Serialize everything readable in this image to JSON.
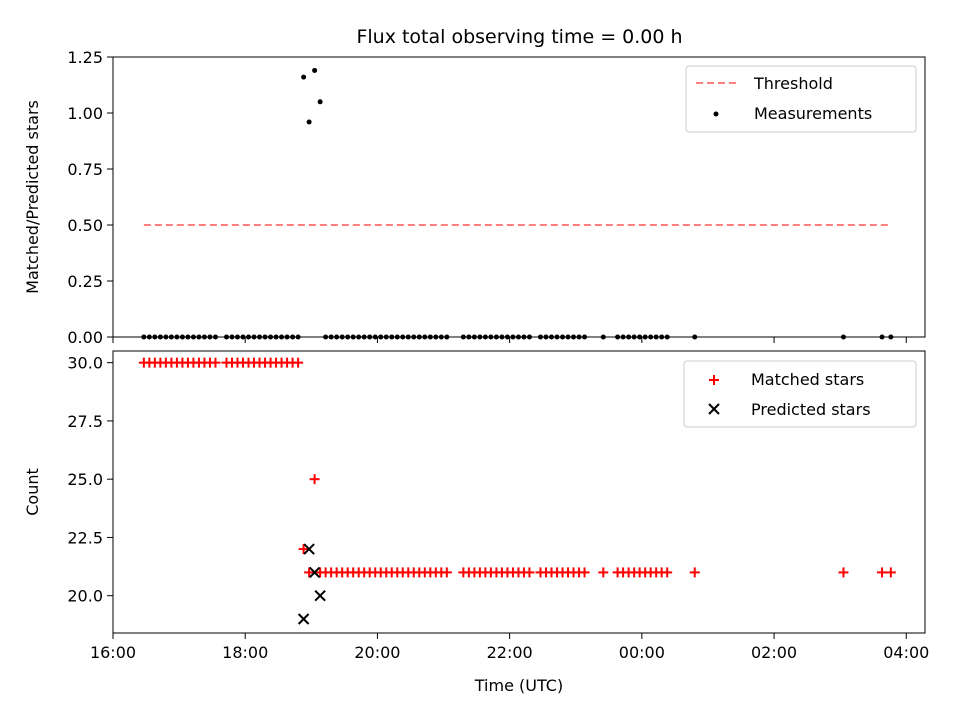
{
  "chart_data": [
    {
      "type": "scatter",
      "title": "Flux total observing time = 0.00 h",
      "ylabel": "Matched/Predicted stars",
      "xlabel": "",
      "xlim": [
        "16:00",
        "04:17"
      ],
      "ylim": [
        0,
        1.25
      ],
      "yticks": [
        "0.00",
        "0.25",
        "0.50",
        "0.75",
        "1.00",
        "1.25"
      ],
      "legend_position": "top-right",
      "series": [
        {
          "name": "Threshold",
          "style": "dashed-line",
          "color": "#ff7f7f",
          "points": [
            [
              "16:28",
              0.5
            ],
            [
              "03:46",
              0.5
            ]
          ]
        },
        {
          "name": "Measurements",
          "style": "dot",
          "color": "#000000",
          "points": [
            [
              "16:28",
              0
            ],
            [
              "16:33",
              0
            ],
            [
              "16:38",
              0
            ],
            [
              "16:43",
              0
            ],
            [
              "16:48",
              0
            ],
            [
              "16:53",
              0
            ],
            [
              "16:58",
              0
            ],
            [
              "17:03",
              0
            ],
            [
              "17:08",
              0
            ],
            [
              "17:13",
              0
            ],
            [
              "17:18",
              0
            ],
            [
              "17:23",
              0
            ],
            [
              "17:28",
              0
            ],
            [
              "17:33",
              0
            ],
            [
              "17:43",
              0
            ],
            [
              "17:48",
              0
            ],
            [
              "17:53",
              0
            ],
            [
              "17:58",
              0
            ],
            [
              "18:03",
              0
            ],
            [
              "18:08",
              0
            ],
            [
              "18:13",
              0
            ],
            [
              "18:18",
              0
            ],
            [
              "18:23",
              0
            ],
            [
              "18:28",
              0
            ],
            [
              "18:33",
              0
            ],
            [
              "18:38",
              0
            ],
            [
              "18:43",
              0
            ],
            [
              "18:48",
              0
            ],
            [
              "18:53",
              1.16
            ],
            [
              "18:58",
              0.96
            ],
            [
              "19:03",
              1.19
            ],
            [
              "19:08",
              1.05
            ],
            [
              "19:13",
              0
            ],
            [
              "19:18",
              0
            ],
            [
              "19:23",
              0
            ],
            [
              "19:28",
              0
            ],
            [
              "19:33",
              0
            ],
            [
              "19:38",
              0
            ],
            [
              "19:43",
              0
            ],
            [
              "19:48",
              0
            ],
            [
              "19:53",
              0
            ],
            [
              "19:58",
              0
            ],
            [
              "20:03",
              0
            ],
            [
              "20:08",
              0
            ],
            [
              "20:13",
              0
            ],
            [
              "20:18",
              0
            ],
            [
              "20:23",
              0
            ],
            [
              "20:28",
              0
            ],
            [
              "20:33",
              0
            ],
            [
              "20:38",
              0
            ],
            [
              "20:43",
              0
            ],
            [
              "20:48",
              0
            ],
            [
              "20:53",
              0
            ],
            [
              "20:58",
              0
            ],
            [
              "21:03",
              0
            ],
            [
              "21:18",
              0
            ],
            [
              "21:23",
              0
            ],
            [
              "21:28",
              0
            ],
            [
              "21:33",
              0
            ],
            [
              "21:38",
              0
            ],
            [
              "21:43",
              0
            ],
            [
              "21:48",
              0
            ],
            [
              "21:53",
              0
            ],
            [
              "21:58",
              0
            ],
            [
              "22:03",
              0
            ],
            [
              "22:08",
              0
            ],
            [
              "22:13",
              0
            ],
            [
              "22:18",
              0
            ],
            [
              "22:28",
              0
            ],
            [
              "22:33",
              0
            ],
            [
              "22:38",
              0
            ],
            [
              "22:43",
              0
            ],
            [
              "22:48",
              0
            ],
            [
              "22:53",
              0
            ],
            [
              "22:58",
              0
            ],
            [
              "23:03",
              0
            ],
            [
              "23:08",
              0
            ],
            [
              "23:25",
              0
            ],
            [
              "23:38",
              0
            ],
            [
              "23:43",
              0
            ],
            [
              "23:48",
              0
            ],
            [
              "23:53",
              0
            ],
            [
              "23:58",
              0
            ],
            [
              "00:03",
              0
            ],
            [
              "00:08",
              0
            ],
            [
              "00:13",
              0
            ],
            [
              "00:18",
              0
            ],
            [
              "00:23",
              0
            ],
            [
              "00:48",
              0
            ],
            [
              "03:03",
              0
            ],
            [
              "03:38",
              0
            ],
            [
              "03:46",
              0
            ]
          ]
        }
      ]
    },
    {
      "type": "scatter",
      "title": "",
      "ylabel": "Count",
      "xlabel": "Time (UTC)",
      "xlim": [
        "16:00",
        "04:17"
      ],
      "ylim": [
        18.4,
        30.5
      ],
      "yticks": [
        "20.0",
        "22.5",
        "25.0",
        "27.5",
        "30.0"
      ],
      "xticks": [
        "16:00",
        "18:00",
        "20:00",
        "22:00",
        "00:00",
        "02:00",
        "04:00"
      ],
      "legend_position": "top-right",
      "series": [
        {
          "name": "Matched stars",
          "style": "plus",
          "color": "#ff0000",
          "points": [
            [
              "16:28",
              30
            ],
            [
              "16:33",
              30
            ],
            [
              "16:38",
              30
            ],
            [
              "16:43",
              30
            ],
            [
              "16:48",
              30
            ],
            [
              "16:53",
              30
            ],
            [
              "16:58",
              30
            ],
            [
              "17:03",
              30
            ],
            [
              "17:08",
              30
            ],
            [
              "17:13",
              30
            ],
            [
              "17:18",
              30
            ],
            [
              "17:23",
              30
            ],
            [
              "17:28",
              30
            ],
            [
              "17:33",
              30
            ],
            [
              "17:43",
              30
            ],
            [
              "17:48",
              30
            ],
            [
              "17:53",
              30
            ],
            [
              "17:58",
              30
            ],
            [
              "18:03",
              30
            ],
            [
              "18:08",
              30
            ],
            [
              "18:13",
              30
            ],
            [
              "18:18",
              30
            ],
            [
              "18:23",
              30
            ],
            [
              "18:28",
              30
            ],
            [
              "18:33",
              30
            ],
            [
              "18:38",
              30
            ],
            [
              "18:43",
              30
            ],
            [
              "18:48",
              30
            ],
            [
              "18:53",
              22
            ],
            [
              "18:58",
              21
            ],
            [
              "19:03",
              25
            ],
            [
              "19:08",
              21
            ],
            [
              "19:13",
              21
            ],
            [
              "19:18",
              21
            ],
            [
              "19:23",
              21
            ],
            [
              "19:28",
              21
            ],
            [
              "19:33",
              21
            ],
            [
              "19:38",
              21
            ],
            [
              "19:43",
              21
            ],
            [
              "19:48",
              21
            ],
            [
              "19:53",
              21
            ],
            [
              "19:58",
              21
            ],
            [
              "20:03",
              21
            ],
            [
              "20:08",
              21
            ],
            [
              "20:13",
              21
            ],
            [
              "20:18",
              21
            ],
            [
              "20:23",
              21
            ],
            [
              "20:28",
              21
            ],
            [
              "20:33",
              21
            ],
            [
              "20:38",
              21
            ],
            [
              "20:43",
              21
            ],
            [
              "20:48",
              21
            ],
            [
              "20:53",
              21
            ],
            [
              "20:58",
              21
            ],
            [
              "21:03",
              21
            ],
            [
              "21:18",
              21
            ],
            [
              "21:23",
              21
            ],
            [
              "21:28",
              21
            ],
            [
              "21:33",
              21
            ],
            [
              "21:38",
              21
            ],
            [
              "21:43",
              21
            ],
            [
              "21:48",
              21
            ],
            [
              "21:53",
              21
            ],
            [
              "21:58",
              21
            ],
            [
              "22:03",
              21
            ],
            [
              "22:08",
              21
            ],
            [
              "22:13",
              21
            ],
            [
              "22:18",
              21
            ],
            [
              "22:28",
              21
            ],
            [
              "22:33",
              21
            ],
            [
              "22:38",
              21
            ],
            [
              "22:43",
              21
            ],
            [
              "22:48",
              21
            ],
            [
              "22:53",
              21
            ],
            [
              "22:58",
              21
            ],
            [
              "23:03",
              21
            ],
            [
              "23:08",
              21
            ],
            [
              "23:25",
              21
            ],
            [
              "23:38",
              21
            ],
            [
              "23:43",
              21
            ],
            [
              "23:48",
              21
            ],
            [
              "23:53",
              21
            ],
            [
              "23:58",
              21
            ],
            [
              "00:03",
              21
            ],
            [
              "00:08",
              21
            ],
            [
              "00:13",
              21
            ],
            [
              "00:18",
              21
            ],
            [
              "00:23",
              21
            ],
            [
              "00:48",
              21
            ],
            [
              "03:03",
              21
            ],
            [
              "03:38",
              21
            ],
            [
              "03:46",
              21
            ]
          ]
        },
        {
          "name": "Predicted stars",
          "style": "x",
          "color": "#000000",
          "points": [
            [
              "18:53",
              19
            ],
            [
              "18:58",
              22
            ],
            [
              "19:03",
              21
            ],
            [
              "19:08",
              20
            ]
          ]
        }
      ]
    }
  ]
}
